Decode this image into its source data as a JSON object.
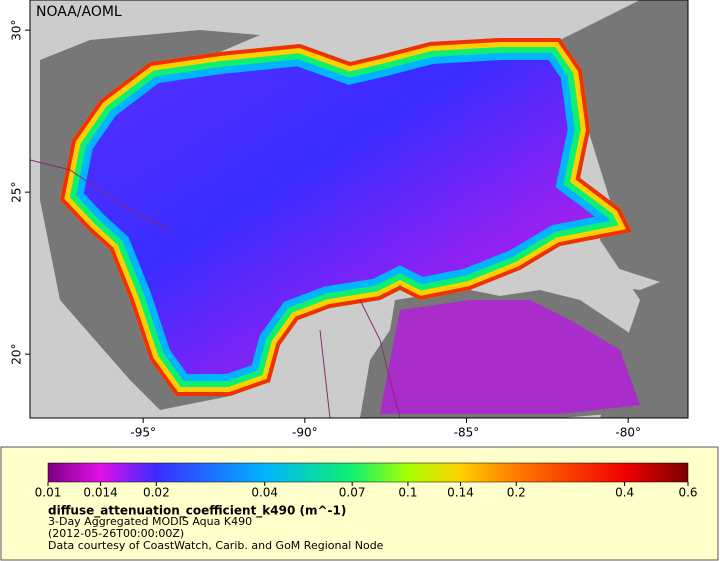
{
  "map": {
    "credit": "NOAA/AOML",
    "xlim": [
      -98.5,
      -78.15
    ],
    "ylim": [
      18.03,
      30.93
    ],
    "xticks": [
      {
        "value": -95,
        "label": "-95°"
      },
      {
        "value": -90,
        "label": "-90°"
      },
      {
        "value": -85,
        "label": "-85°"
      },
      {
        "value": -80,
        "label": "-80°"
      }
    ],
    "yticks": [
      {
        "value": 20,
        "label": "20°"
      },
      {
        "value": 25,
        "label": "25°"
      },
      {
        "value": 30,
        "label": "30°"
      }
    ]
  },
  "legend": {
    "variable": "diffuse_attenuation_coefficient_k490 (m^-1)",
    "description": "3-Day Aggregated MODIS Aqua K490",
    "time": "(2012-05-26T00:00:00Z)",
    "credit": "Data courtesy of CoastWatch, Carib. and GoM Regional Node",
    "scale": "log",
    "lim": [
      0.01,
      0.6
    ],
    "ticks": [
      0.01,
      0.014,
      0.02,
      0.04,
      0.07,
      0.1,
      0.14,
      0.2,
      0.4,
      0.6
    ],
    "colors": [
      "#7a0082",
      "#e010e8",
      "#3a2cff",
      "#00b4ff",
      "#10f070",
      "#a8ff00",
      "#ffd000",
      "#ff7a00",
      "#f00000",
      "#7a0000"
    ]
  }
}
